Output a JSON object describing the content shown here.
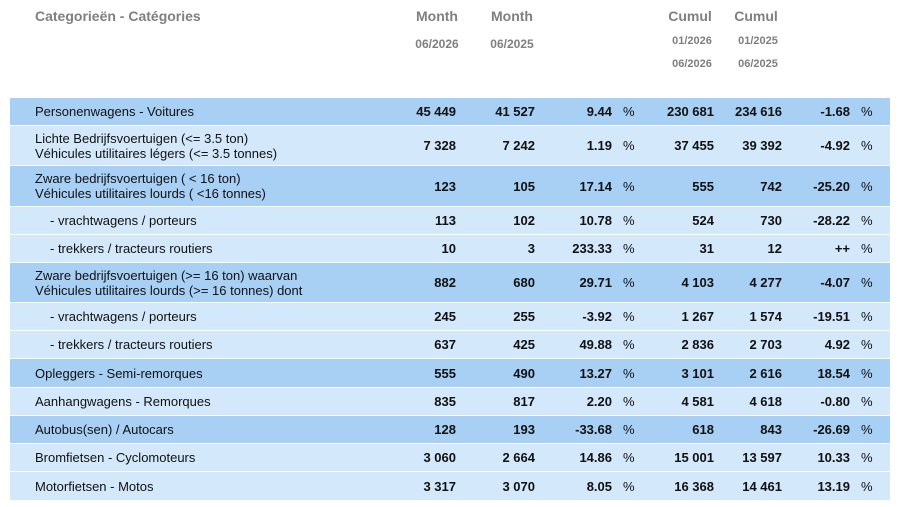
{
  "header": {
    "category": "Categorieën - Catégories",
    "month_2026": {
      "title": "Month",
      "period": "06/2026"
    },
    "month_2025": {
      "title": "Month",
      "period": "06/2025"
    },
    "cumul_2026": {
      "title": "Cumul",
      "from": "01/2026",
      "to": "06/2026"
    },
    "cumul_2025": {
      "title": "Cumul",
      "from": "01/2025",
      "to": "06/2025"
    },
    "unit": "%"
  },
  "table": {
    "colors": {
      "dark": "#a8cff4",
      "light": "#d4e8fb"
    },
    "rows": [
      {
        "label": [
          "Personenwagens - Voitures"
        ],
        "m2026": "45 449",
        "m2025": "41 527",
        "pct": "9.44",
        "c2026": "230 681",
        "c2025": "234 616",
        "cpct": "-1.68",
        "shade": "dark"
      },
      {
        "label": [
          "Lichte Bedrijfsvoertuigen (<= 3.5 ton)",
          "Véhicules utilitaires légers (<= 3.5 tonnes)"
        ],
        "m2026": "7 328",
        "m2025": "7 242",
        "pct": "1.19",
        "c2026": "37 455",
        "c2025": "39 392",
        "cpct": "-4.92",
        "shade": "light"
      },
      {
        "label": [
          "Zware bedrijfsvoertuigen ( < 16 ton)",
          "Véhicules utilitaires lourds ( <16 tonnes)"
        ],
        "m2026": "123",
        "m2025": "105",
        "pct": "17.14",
        "c2026": "555",
        "c2025": "742",
        "cpct": "-25.20",
        "shade": "dark"
      },
      {
        "label": [
          "- vrachtwagens / porteurs"
        ],
        "m2026": "113",
        "m2025": "102",
        "pct": "10.78",
        "c2026": "524",
        "c2025": "730",
        "cpct": "-28.22",
        "shade": "light"
      },
      {
        "label": [
          "- trekkers / tracteurs routiers"
        ],
        "m2026": "10",
        "m2025": "3",
        "pct": "233.33",
        "c2026": "31",
        "c2025": "12",
        "cpct": "++",
        "shade": "light"
      },
      {
        "label": [
          "Zware bedrijfsvoertuigen (>= 16 ton) waarvan",
          "Véhicules utilitaires lourds (>= 16 tonnes) dont"
        ],
        "m2026": "882",
        "m2025": "680",
        "pct": "29.71",
        "c2026": "4 103",
        "c2025": "4 277",
        "cpct": "-4.07",
        "shade": "dark"
      },
      {
        "label": [
          "- vrachtwagens / porteurs"
        ],
        "m2026": "245",
        "m2025": "255",
        "pct": "-3.92",
        "c2026": "1 267",
        "c2025": "1 574",
        "cpct": "-19.51",
        "shade": "light"
      },
      {
        "label": [
          "- trekkers / tracteurs routiers"
        ],
        "m2026": "637",
        "m2025": "425",
        "pct": "49.88",
        "c2026": "2 836",
        "c2025": "2 703",
        "cpct": "4.92",
        "shade": "light"
      },
      {
        "label": [
          "Opleggers - Semi-remorques"
        ],
        "m2026": "555",
        "m2025": "490",
        "pct": "13.27",
        "c2026": "3 101",
        "c2025": "2 616",
        "cpct": "18.54",
        "shade": "dark"
      },
      {
        "label": [
          "Aanhangwagens - Remorques"
        ],
        "m2026": "835",
        "m2025": "817",
        "pct": "2.20",
        "c2026": "4 581",
        "c2025": "4 618",
        "cpct": "-0.80",
        "shade": "light"
      },
      {
        "label": [
          "Autobus(sen) / Autocars"
        ],
        "m2026": "128",
        "m2025": "193",
        "pct": "-33.68",
        "c2026": "618",
        "c2025": "843",
        "cpct": "-26.69",
        "shade": "dark"
      },
      {
        "label": [
          "Bromfietsen - Cyclomoteurs"
        ],
        "m2026": "3 060",
        "m2025": "2 664",
        "pct": "14.86",
        "c2026": "15 001",
        "c2025": "13 597",
        "cpct": "10.33",
        "shade": "light"
      },
      {
        "label": [
          "Motorfietsen - Motos"
        ],
        "m2026": "3 317",
        "m2025": "3 070",
        "pct": "8.05",
        "c2026": "16 368",
        "c2025": "14 461",
        "cpct": "13.19",
        "shade": "light"
      }
    ]
  }
}
